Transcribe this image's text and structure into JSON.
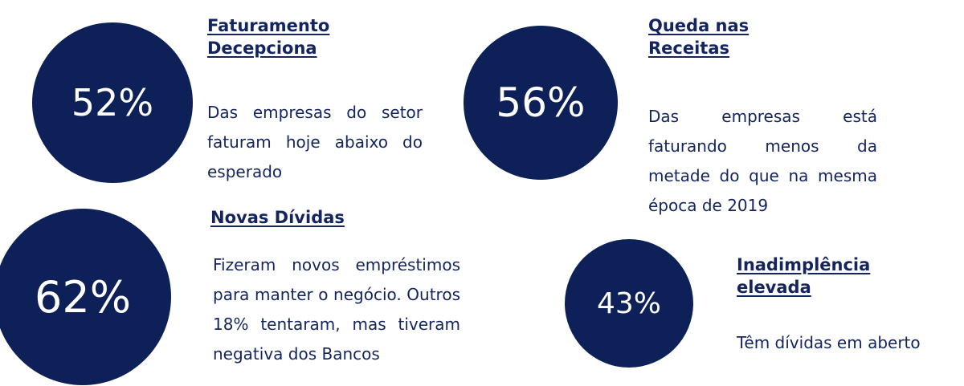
{
  "items": [
    {
      "value": "52%",
      "title": "Faturamento Decepciona",
      "description": "Das empresas do setor faturam hoje abaixo do esperado"
    },
    {
      "value": "56%",
      "title": "Queda nas Receitas",
      "description": "Das empresas está faturando menos da metade do que na mesma época de 2019"
    },
    {
      "value": "62%",
      "title": "Novas Dívidas",
      "description": "Fizeram novos empréstimos para manter o negócio. Outros 18% tentaram, mas tiveram negativa dos Bancos"
    },
    {
      "value": "43%",
      "title": "Inadimplência elevada",
      "description": "Têm dívidas em aberto"
    }
  ]
}
